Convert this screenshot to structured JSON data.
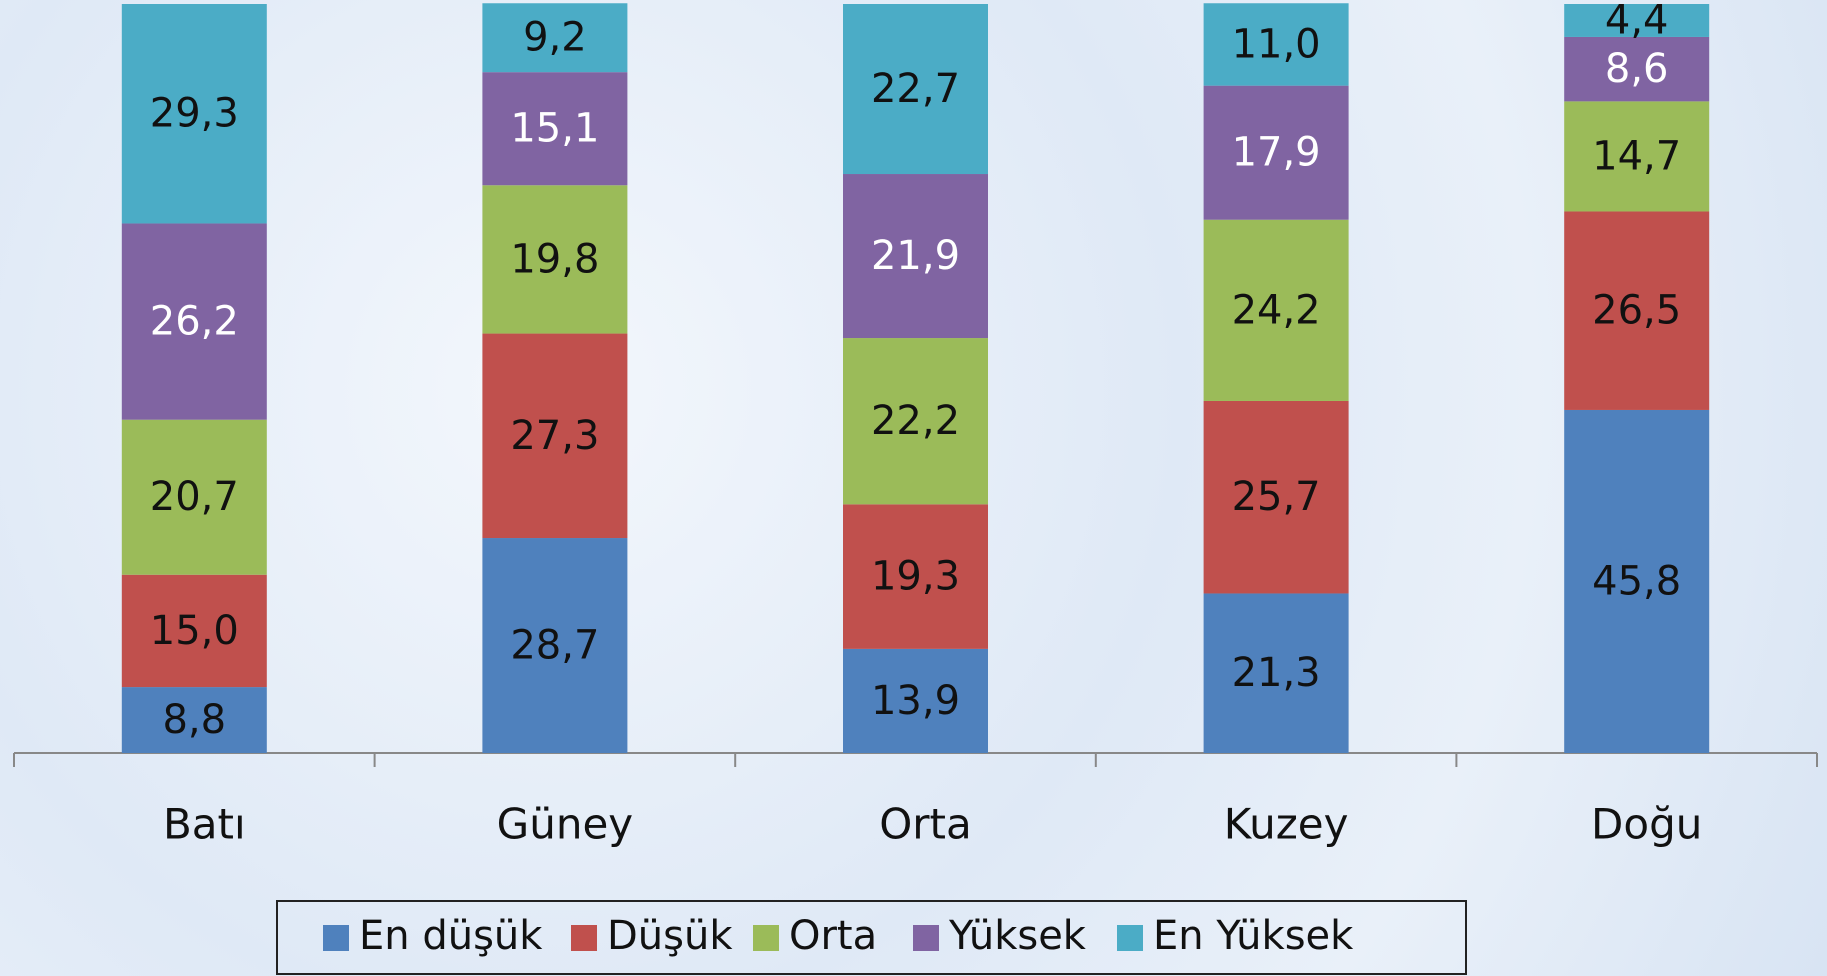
{
  "chart_data": {
    "type": "stacked-bar",
    "categories": [
      "Batı",
      "Güney",
      "Orta",
      "Kuzey",
      "Doğu"
    ],
    "ylim": [
      0,
      100
    ],
    "series": [
      {
        "name": "En düşük",
        "color": "#4f81bd",
        "values": [
          8.8,
          28.7,
          13.9,
          21.3,
          45.8
        ],
        "value_labels": [
          "8,8",
          "28,7",
          "13,9",
          "21,3",
          "45,8"
        ]
      },
      {
        "name": "Düşük",
        "color": "#c0504d",
        "values": [
          15.0,
          27.3,
          19.3,
          25.7,
          26.5
        ],
        "value_labels": [
          "15,0",
          "27,3",
          "19,3",
          "25,7",
          "26,5"
        ]
      },
      {
        "name": "Orta",
        "color": "#9bbb59",
        "values": [
          20.7,
          19.8,
          22.2,
          24.2,
          14.7
        ],
        "value_labels": [
          "20,7",
          "19,8",
          "22,2",
          "24,2",
          "14,7"
        ]
      },
      {
        "name": "Yüksek",
        "color": "#8064a2",
        "label_color": "#ffffff",
        "values": [
          26.2,
          15.1,
          21.9,
          17.9,
          8.6
        ],
        "value_labels": [
          "26,2",
          "15,1",
          "21,9",
          "17,9",
          "8,6"
        ]
      },
      {
        "name": "En Yüksek",
        "color": "#4bacc6",
        "values": [
          29.3,
          9.2,
          22.7,
          11.0,
          4.4
        ],
        "value_labels": [
          "29,3",
          "9,2",
          "22,7",
          "11,0",
          "4,4"
        ]
      }
    ]
  }
}
